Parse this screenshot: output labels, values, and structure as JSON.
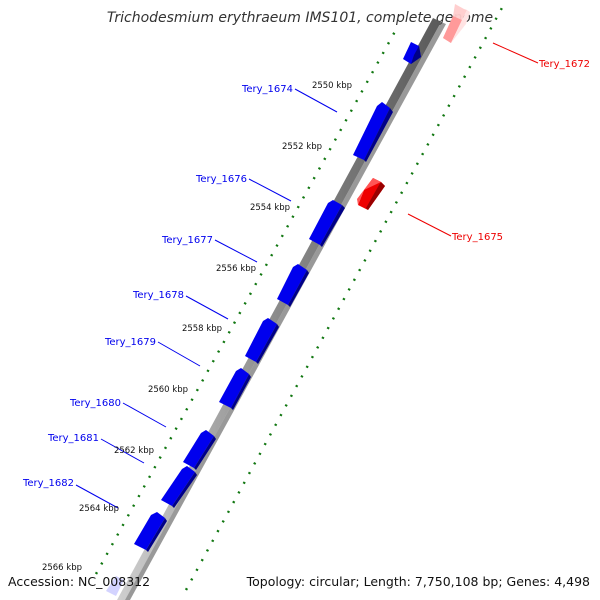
{
  "title": "Trichodesmium erythraeum IMS101, complete genome",
  "accession": "Accession: NC_008312",
  "topology": "Topology: circular; Length: 7,750,108 bp; Genes: 4,498",
  "colors": {
    "forward_gene": "#0000ee",
    "reverse_gene": "#ee0000",
    "tick_dots": "#117711",
    "backbone": "#888888"
  },
  "ticks": [
    {
      "label": "2550 kbp",
      "pos_kbp": 2550
    },
    {
      "label": "2552 kbp",
      "pos_kbp": 2552
    },
    {
      "label": "2554 kbp",
      "pos_kbp": 2554
    },
    {
      "label": "2556 kbp",
      "pos_kbp": 2556
    },
    {
      "label": "2558 kbp",
      "pos_kbp": 2558
    },
    {
      "label": "2560 kbp",
      "pos_kbp": 2560
    },
    {
      "label": "2562 kbp",
      "pos_kbp": 2562
    },
    {
      "label": "2564 kbp",
      "pos_kbp": 2564
    },
    {
      "label": "2566 kbp",
      "pos_kbp": 2566
    }
  ],
  "genes": [
    {
      "name": "Tery_1672",
      "strand": "reverse"
    },
    {
      "name": "Tery_1674",
      "strand": "forward"
    },
    {
      "name": "Tery_1675",
      "strand": "reverse"
    },
    {
      "name": "Tery_1676",
      "strand": "forward"
    },
    {
      "name": "Tery_1677",
      "strand": "forward"
    },
    {
      "name": "Tery_1678",
      "strand": "forward"
    },
    {
      "name": "Tery_1679",
      "strand": "forward"
    },
    {
      "name": "Tery_1680",
      "strand": "forward"
    },
    {
      "name": "Tery_1681",
      "strand": "forward"
    },
    {
      "name": "Tery_1682",
      "strand": "forward"
    }
  ]
}
